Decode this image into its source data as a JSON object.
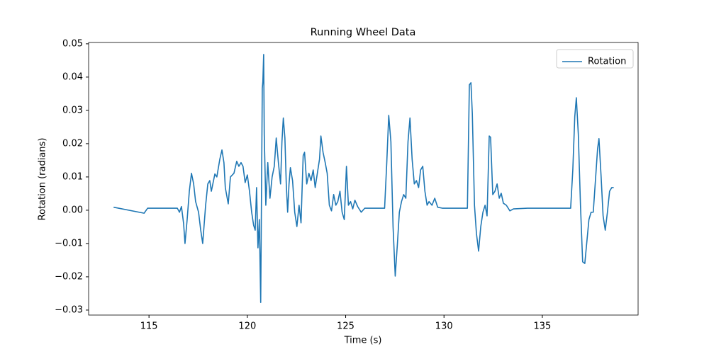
{
  "chart_data": {
    "type": "line",
    "title": "Running Wheel Data",
    "x_label": "Time (s)",
    "y_label": "Rotation (radians)",
    "xlim": [
      111.93,
      139.87
    ],
    "ylim": [
      -0.0315,
      0.0504
    ],
    "xticks": [
      115,
      120,
      125,
      130,
      135
    ],
    "yticks": [
      {
        "value": -0.03,
        "label": "−0.03"
      },
      {
        "value": -0.02,
        "label": "−0.02"
      },
      {
        "value": -0.01,
        "label": "−0.01"
      },
      {
        "value": 0,
        "label": "0.00"
      },
      0.01,
      0.02,
      0.03,
      0.04,
      0.05
    ],
    "legend": "upper right",
    "grid": false,
    "x": [
      113.2,
      114.75,
      114.93,
      116.44,
      116.55,
      116.65,
      116.76,
      116.83,
      116.94,
      117.05,
      117.16,
      117.27,
      117.37,
      117.52,
      117.63,
      117.73,
      117.88,
      117.99,
      118.09,
      118.17,
      118.35,
      118.45,
      118.6,
      118.71,
      118.81,
      118.88,
      119.03,
      119.14,
      119.32,
      119.46,
      119.57,
      119.68,
      119.78,
      119.89,
      120.0,
      120.11,
      120.22,
      120.32,
      120.4,
      120.47,
      120.54,
      120.61,
      120.68,
      120.76,
      120.79,
      120.83,
      120.86,
      120.94,
      121.04,
      121.15,
      121.26,
      121.37,
      121.47,
      121.58,
      121.69,
      121.76,
      121.83,
      121.91,
      121.98,
      122.05,
      122.12,
      122.19,
      122.3,
      122.41,
      122.52,
      122.63,
      122.73,
      122.84,
      122.91,
      123.02,
      123.13,
      123.24,
      123.35,
      123.45,
      123.56,
      123.67,
      123.74,
      123.85,
      123.96,
      124.06,
      124.17,
      124.28,
      124.39,
      124.5,
      124.6,
      124.71,
      124.82,
      124.93,
      125.04,
      125.14,
      125.25,
      125.36,
      125.47,
      125.61,
      125.79,
      125.97,
      126.98,
      127.09,
      127.19,
      127.3,
      127.41,
      127.52,
      127.63,
      127.73,
      127.84,
      127.95,
      128.06,
      128.17,
      128.27,
      128.38,
      128.49,
      128.6,
      128.71,
      128.81,
      128.92,
      129.03,
      129.14,
      129.24,
      129.39,
      129.53,
      129.68,
      129.93,
      131.19,
      131.29,
      131.37,
      131.44,
      131.55,
      131.65,
      131.76,
      131.87,
      131.98,
      132.09,
      132.19,
      132.3,
      132.37,
      132.48,
      132.59,
      132.7,
      132.81,
      132.91,
      133.02,
      133.17,
      133.35,
      133.53,
      134.24,
      136.44,
      136.55,
      136.65,
      136.73,
      136.83,
      136.94,
      137.05,
      137.16,
      137.27,
      137.37,
      137.48,
      137.59,
      137.7,
      137.81,
      137.88,
      137.99,
      138.09,
      138.2,
      138.31,
      138.42,
      138.53,
      138.63
    ],
    "series": [
      {
        "name": "Rotation",
        "color": "#1f77b4",
        "values": [
          0.0009,
          -0.0009,
          0.0006,
          0.0006,
          -0.0006,
          0.0011,
          -0.004,
          -0.01,
          -0.0028,
          0.0057,
          0.0111,
          0.0079,
          0.0026,
          -0.0006,
          -0.006,
          -0.01,
          0.0015,
          0.0079,
          0.0089,
          0.0057,
          0.0109,
          0.01,
          0.0153,
          0.0181,
          0.0143,
          0.0068,
          0.0019,
          0.01,
          0.0111,
          0.0147,
          0.0132,
          0.0143,
          0.0132,
          0.0083,
          0.0106,
          0.0057,
          -0.0006,
          -0.0045,
          -0.006,
          0.0068,
          -0.0113,
          -0.0028,
          -0.0277,
          0.0366,
          0.0387,
          0.0468,
          0.0228,
          0.0015,
          0.0143,
          0.0036,
          0.01,
          0.0132,
          0.0217,
          0.0143,
          0.0079,
          0.0206,
          0.0277,
          0.0217,
          0.0079,
          -0.0006,
          0.0079,
          0.0128,
          0.0089,
          -0.0006,
          -0.0049,
          0.0015,
          -0.0038,
          0.0164,
          0.0174,
          0.0079,
          0.0111,
          0.0089,
          0.0121,
          0.0068,
          0.0111,
          0.0153,
          0.0223,
          0.0174,
          0.0143,
          0.0111,
          0.0015,
          -0.0002,
          0.0047,
          0.0015,
          0.0026,
          0.0057,
          -0.0006,
          -0.0028,
          0.0132,
          0.0015,
          0.0026,
          0.0004,
          0.003,
          0.0011,
          -0.0006,
          0.0006,
          0.0006,
          0.0143,
          0.0285,
          0.0206,
          -0.0049,
          -0.0198,
          -0.0102,
          -0.0006,
          0.0026,
          0.0047,
          0.0036,
          0.0206,
          0.0277,
          0.0153,
          0.0079,
          0.0089,
          0.0068,
          0.0121,
          0.0132,
          0.0057,
          0.0015,
          0.0026,
          0.0015,
          0.0036,
          0.0009,
          0.0006,
          0.0006,
          0.0377,
          0.0383,
          0.0291,
          0.0015,
          -0.007,
          -0.0123,
          -0.0049,
          -0.0006,
          0.0015,
          -0.0017,
          0.0223,
          0.0219,
          0.0047,
          0.0057,
          0.0079,
          0.0036,
          0.0051,
          0.0021,
          0.0015,
          -0.0002,
          0.0004,
          0.0006,
          0.0006,
          0.0121,
          0.0281,
          0.0338,
          0.0228,
          0.0015,
          -0.0155,
          -0.016,
          -0.0091,
          -0.0028,
          -0.0006,
          -0.0006,
          0.0089,
          0.0185,
          0.0215,
          0.01,
          -0.0017,
          -0.006,
          -0.0006,
          0.0057,
          0.0068,
          0.0068
        ]
      }
    ]
  }
}
